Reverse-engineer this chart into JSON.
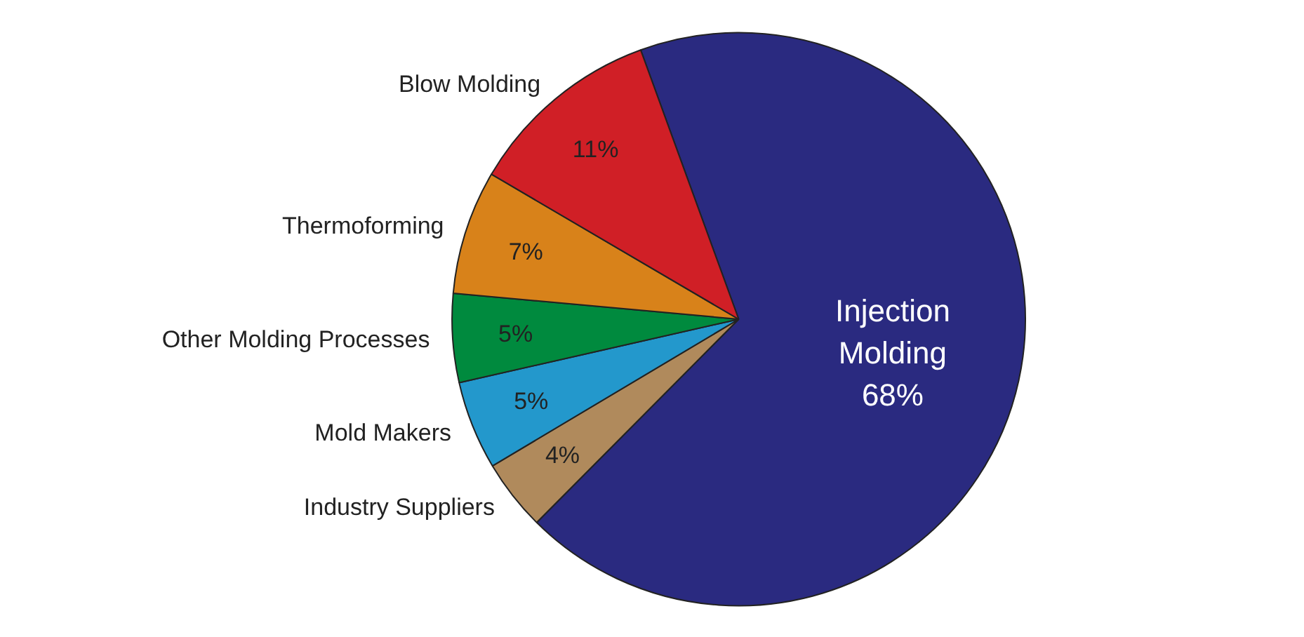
{
  "chart_data": {
    "type": "pie",
    "categories": [
      "Injection Molding",
      "Industry Suppliers",
      "Mold Makers",
      "Other Molding Processes",
      "Thermoforming",
      "Blow Molding"
    ],
    "values": [
      68,
      4,
      5,
      5,
      7,
      11
    ],
    "value_labels": [
      "68%",
      "4%",
      "5%",
      "5%",
      "7%",
      "11%"
    ],
    "colors": [
      "#2a2a80",
      "#b08a5c",
      "#2398cc",
      "#008a3e",
      "#d8821a",
      "#d01f26"
    ]
  }
}
